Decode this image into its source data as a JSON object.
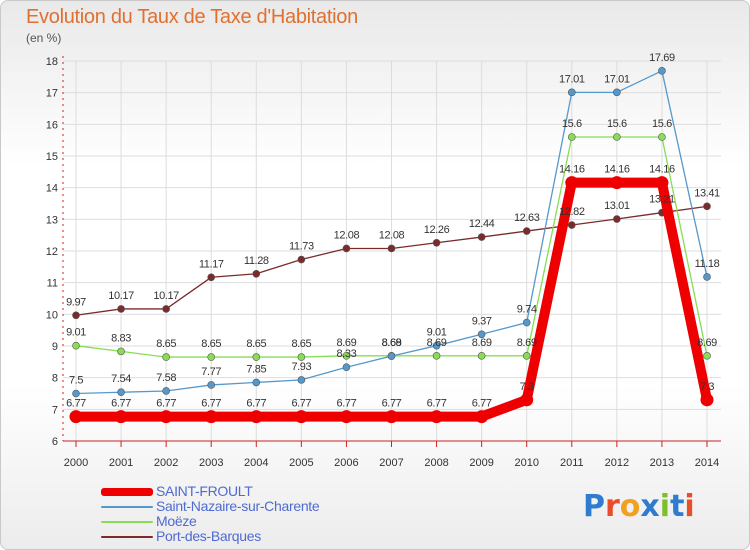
{
  "header": {
    "title": "Evolution du Taux de Taxe d'Habitation",
    "subtitle": "(en %)"
  },
  "logo": {
    "letters": [
      "P",
      "r",
      "o",
      "x",
      "i",
      "t",
      "i"
    ],
    "colors": [
      "#2e7bd0",
      "#e94e2b",
      "#f2a020",
      "#2e7bd0",
      "#7cbf2a",
      "#2e7bd0",
      "#e94e2b"
    ]
  },
  "chart_data": {
    "type": "line",
    "title": "Evolution du Taux de Taxe d'Habitation",
    "subtitle": "(en %)",
    "x": [
      "2000",
      "2001",
      "2002",
      "2003",
      "2004",
      "2005",
      "2006",
      "2007",
      "2008",
      "2009",
      "2010",
      "2011",
      "2012",
      "2013",
      "2014"
    ],
    "ylim": [
      6,
      18
    ],
    "yticks": [
      "6",
      "7",
      "8",
      "9",
      "10",
      "11",
      "12",
      "13",
      "14",
      "15",
      "16",
      "17",
      "18"
    ],
    "grid": true,
    "legend_position": "bottom-left",
    "series": [
      {
        "name": "Port-des-Barques",
        "color": "#7b2b2b",
        "values": [
          9.97,
          10.17,
          10.17,
          11.17,
          11.28,
          11.73,
          12.08,
          12.08,
          12.26,
          12.44,
          12.63,
          12.82,
          13.01,
          13.21,
          13.41
        ],
        "labels": [
          "9.97",
          "10.17",
          "10.17",
          "11.17",
          "11.28",
          "11.73",
          "12.08",
          "12.08",
          "12.26",
          "12.44",
          "12.63",
          "12.82",
          "13.01",
          "13.21",
          "13.41"
        ]
      },
      {
        "name": "Moëze",
        "color": "#88dd55",
        "values": [
          9.01,
          8.83,
          8.65,
          8.65,
          8.65,
          8.65,
          8.69,
          8.69,
          8.69,
          8.69,
          8.69,
          15.6,
          15.6,
          15.6,
          8.69
        ],
        "labels": [
          "9.01",
          "8.83",
          "8.65",
          "8.65",
          "8.65",
          "8.65",
          "8.69",
          "8.69",
          "8.69",
          "8.69",
          "8.69",
          "15.6",
          "15.6",
          "15.6",
          "8.69"
        ]
      },
      {
        "name": "Saint-Nazaire-sur-Charente",
        "color": "#5599cc",
        "values": [
          7.5,
          7.54,
          7.58,
          7.77,
          7.85,
          7.93,
          8.33,
          8.68,
          9.01,
          9.37,
          9.74,
          17.01,
          17.01,
          17.69,
          11.18
        ],
        "labels": [
          "7.5",
          "7.54",
          "7.58",
          "7.77",
          "7.85",
          "7.93",
          "8.33",
          "8.68",
          "9.01",
          "9.37",
          "9.74",
          "17.01",
          "17.01",
          "17.69",
          "11.18"
        ]
      },
      {
        "name": "SAINT-FROULT",
        "color": "#ee0000",
        "values": [
          6.77,
          6.77,
          6.77,
          6.77,
          6.77,
          6.77,
          6.77,
          6.77,
          6.77,
          6.77,
          7.3,
          14.16,
          14.16,
          14.16,
          7.3
        ],
        "labels": [
          "6.77",
          "6.77",
          "6.77",
          "6.77",
          "6.77",
          "6.77",
          "6.77",
          "6.77",
          "6.77",
          "6.77",
          "7.3",
          "14.16",
          "14.16",
          "14.16",
          "7.3"
        ]
      }
    ],
    "legend": [
      "SAINT-FROULT",
      "Saint-Nazaire-sur-Charente",
      "Moëze",
      "Port-des-Barques"
    ]
  }
}
